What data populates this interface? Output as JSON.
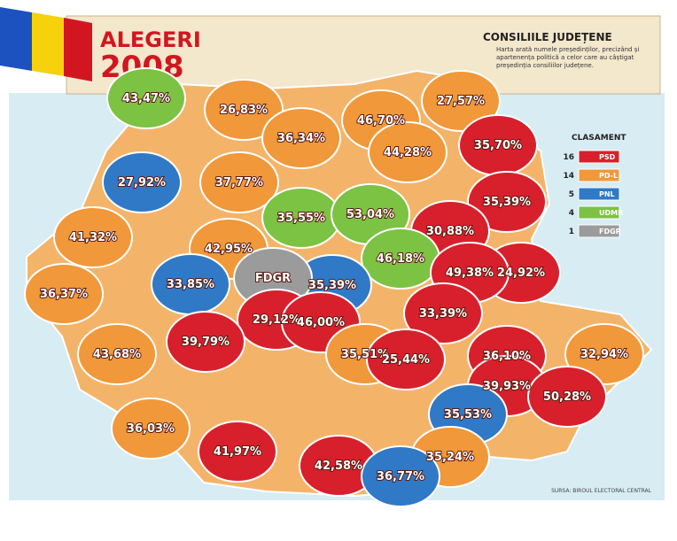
{
  "header": {
    "title": "ALEGERI",
    "year": "2008"
  },
  "panel": {
    "title": "CONSILIILE JUDEȚENE",
    "text": "Harta arată numele președinților, precizând și apartenența politică a celor care au câștigat președinția consiliilor județene."
  },
  "legend": {
    "title": "CLASAMENT",
    "items": [
      {
        "count": 16,
        "party": "PSD",
        "color": "#d7202c"
      },
      {
        "count": 14,
        "party": "PD-L",
        "color": "#f0983a"
      },
      {
        "count": 5,
        "party": "PNL",
        "color": "#2f79c6"
      },
      {
        "count": 4,
        "party": "UDMR",
        "color": "#7cc243"
      },
      {
        "count": 1,
        "party": "FDGR",
        "color": "#9b9b9b"
      }
    ]
  },
  "counties": [
    {
      "label": "43,47%",
      "color": "#7cc243"
    },
    {
      "label": "26,83%",
      "color": "#f0983a"
    },
    {
      "label": "27,57%",
      "color": "#f0983a"
    },
    {
      "label": "46,70%",
      "color": "#f0983a"
    },
    {
      "label": "36,34%",
      "color": "#f0983a"
    },
    {
      "label": "35,70%",
      "color": "#d7202c"
    },
    {
      "label": "44,28%",
      "color": "#f0983a"
    },
    {
      "label": "27,92%",
      "color": "#2f79c6"
    },
    {
      "label": "37,77%",
      "color": "#f0983a"
    },
    {
      "label": "35,39%",
      "color": "#d7202c"
    },
    {
      "label": "35,55%",
      "color": "#7cc243"
    },
    {
      "label": "53,04%",
      "color": "#7cc243"
    },
    {
      "label": "41,32%",
      "color": "#f0983a"
    },
    {
      "label": "30,88%",
      "color": "#d7202c"
    },
    {
      "label": "42,95%",
      "color": "#f0983a"
    },
    {
      "label": "46,18%",
      "color": "#7cc243"
    },
    {
      "label": "24,92%",
      "color": "#d7202c"
    },
    {
      "label": "49,38%",
      "color": "#d7202c"
    },
    {
      "label": "33,85%",
      "color": "#2f79c6"
    },
    {
      "label": "36,37%",
      "color": "#f0983a"
    },
    {
      "label": "35,39%",
      "color": "#2f79c6"
    },
    {
      "label": "FDGR",
      "color": "#9b9b9b"
    },
    {
      "label": "29,12%",
      "color": "#d7202c"
    },
    {
      "label": "46,00%",
      "color": "#d7202c"
    },
    {
      "label": "33,39%",
      "color": "#d7202c"
    },
    {
      "label": "39,79%",
      "color": "#d7202c"
    },
    {
      "label": "35,51%",
      "color": "#f0983a"
    },
    {
      "label": "25,44%",
      "color": "#d7202c"
    },
    {
      "label": "36,10%",
      "color": "#d7202c"
    },
    {
      "label": "32,94%",
      "color": "#f0983a"
    },
    {
      "label": "43,68%",
      "color": "#f0983a"
    },
    {
      "label": "39,93%",
      "color": "#d7202c"
    },
    {
      "label": "50,28%",
      "color": "#d7202c"
    },
    {
      "label": "35,53%",
      "color": "#2f79c6"
    },
    {
      "label": "36,03%",
      "color": "#f0983a"
    },
    {
      "label": "41,97%",
      "color": "#d7202c"
    },
    {
      "label": "42,58%",
      "color": "#d7202c"
    },
    {
      "label": "35,24%",
      "color": "#f0983a"
    },
    {
      "label": "36,77%",
      "color": "#2f79c6"
    }
  ],
  "source": "SURSA: BIROUL ELECTORAL CENTRAL"
}
